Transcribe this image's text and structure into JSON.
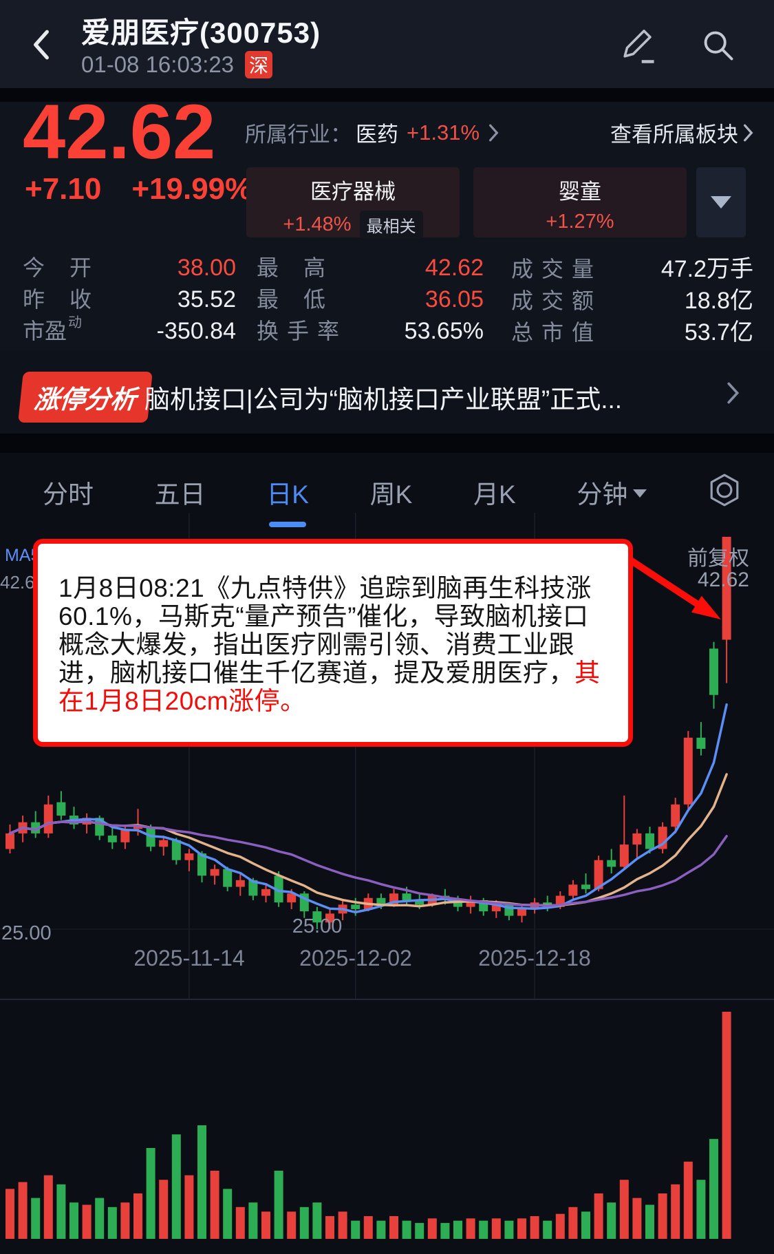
{
  "header": {
    "title": "爱朋医疗(300753)",
    "datetime": "01-08 16:03:23",
    "exchange_badge": "深"
  },
  "quote": {
    "price": "42.62",
    "change": "+7.10",
    "change_pct": "+19.99%",
    "industry_label": "所属行业：",
    "industry_name": "医药",
    "industry_pct": "+1.31%",
    "view_sector": "查看所属板块",
    "sectors": [
      {
        "name": "医疗器械",
        "pct": "+1.48%",
        "tag": "最相关"
      },
      {
        "name": "婴童",
        "pct": "+1.27%"
      }
    ]
  },
  "stats": {
    "pe_sup": "动",
    "rows": [
      [
        {
          "label": "今开",
          "value": "38.00"
        },
        {
          "label": "最高",
          "value": "42.62"
        },
        {
          "label": "成交量",
          "value": "47.2万手"
        }
      ],
      [
        {
          "label": "昨收",
          "value": "35.52"
        },
        {
          "label": "最低",
          "value": "36.05"
        },
        {
          "label": "成交额",
          "value": "18.8亿"
        }
      ],
      [
        {
          "label": "市盈",
          "value": "-350.84"
        },
        {
          "label": "换手率",
          "value": "53.65%"
        },
        {
          "label": "总市值",
          "value": "53.7亿"
        }
      ]
    ]
  },
  "banner": {
    "badge": "涨停分析",
    "text": "脑机接口|公司为“脑机接口产业联盟”正式..."
  },
  "tabs": {
    "items": [
      "分时",
      "五日",
      "日K",
      "周K",
      "月K",
      "分钟"
    ],
    "active": "日K"
  },
  "annotation": {
    "text_black": "1月8日08:21《九点特供》追踪到脑再生科技涨60.1%，马斯克“量产预告”催化，导致脑机接口概念大爆发，指出医疗刚需引领、消费工业跟进，脑机接口催生千亿赛道，提及爱朋医疗，",
    "text_red": "其在1月8日20cm涨停。"
  },
  "chart_data": {
    "type": "candlestick",
    "ma_label": "MA5:",
    "adjust_label": "前复权",
    "y_max_label": "42.62",
    "y_min_label": "25.00",
    "trough_label": "25.00",
    "x_labels": [
      "2025-11-14",
      "2025-12-02",
      "2025-12-18"
    ],
    "ylim": [
      25.0,
      42.62
    ],
    "gridline_indices": [
      14,
      27,
      41
    ],
    "ma_periods": [
      5,
      10,
      20
    ],
    "colors": {
      "up": "#e8413c",
      "down": "#2eae54",
      "ma5": "#5b8ff5",
      "ma10": "#e3b48c",
      "ma20": "#8a5fc0",
      "accent_red": "#fb4136",
      "tab_blue": "#4c8cf5"
    },
    "candles": [
      [
        28.6,
        29.7,
        28.4,
        29.3,
        22
      ],
      [
        29.3,
        30.1,
        28.9,
        29.8,
        25
      ],
      [
        29.8,
        30.3,
        29.1,
        29.3,
        18
      ],
      [
        29.3,
        31.0,
        29.1,
        30.6,
        28
      ],
      [
        30.7,
        31.2,
        29.9,
        30.1,
        24
      ],
      [
        30.1,
        30.5,
        29.5,
        29.7,
        16
      ],
      [
        29.7,
        30.2,
        29.3,
        30.0,
        15
      ],
      [
        30.0,
        30.1,
        29.0,
        29.2,
        18
      ],
      [
        29.2,
        29.6,
        28.6,
        28.9,
        14
      ],
      [
        28.9,
        29.7,
        28.6,
        29.5,
        16
      ],
      [
        29.5,
        30.4,
        29.2,
        29.6,
        20
      ],
      [
        29.6,
        29.7,
        28.5,
        28.7,
        40
      ],
      [
        28.7,
        29.2,
        28.3,
        29.0,
        26
      ],
      [
        29.0,
        29.1,
        27.9,
        28.1,
        46
      ],
      [
        28.1,
        28.6,
        27.6,
        28.4,
        28
      ],
      [
        28.4,
        28.5,
        27.1,
        27.4,
        50
      ],
      [
        27.4,
        27.9,
        27.0,
        27.7,
        30
      ],
      [
        27.7,
        27.8,
        26.7,
        26.9,
        22
      ],
      [
        26.9,
        27.5,
        26.5,
        27.2,
        14
      ],
      [
        27.2,
        27.3,
        26.3,
        26.5,
        16
      ],
      [
        26.5,
        27.0,
        26.2,
        26.8,
        12
      ],
      [
        27.4,
        27.6,
        26.0,
        26.2,
        30
      ],
      [
        26.2,
        26.8,
        25.9,
        26.6,
        12
      ],
      [
        26.6,
        26.7,
        25.5,
        25.8,
        14
      ],
      [
        25.8,
        26.0,
        25.0,
        25.3,
        16
      ],
      [
        25.3,
        25.9,
        25.0,
        25.7,
        10
      ],
      [
        25.7,
        26.3,
        25.4,
        26.1,
        12
      ],
      [
        26.1,
        26.4,
        25.6,
        25.9,
        8
      ],
      [
        25.9,
        26.6,
        25.8,
        26.4,
        10
      ],
      [
        26.4,
        26.6,
        25.9,
        26.1,
        8
      ],
      [
        26.1,
        26.8,
        26.0,
        26.6,
        10
      ],
      [
        26.6,
        26.9,
        26.1,
        26.3,
        8
      ],
      [
        26.3,
        26.6,
        25.9,
        26.1,
        7
      ],
      [
        26.1,
        26.6,
        26.0,
        26.5,
        9
      ],
      [
        26.5,
        26.8,
        26.1,
        26.3,
        7
      ],
      [
        26.3,
        26.5,
        25.8,
        26.0,
        8
      ],
      [
        26.0,
        26.5,
        25.7,
        26.3,
        9
      ],
      [
        26.3,
        26.4,
        25.6,
        25.8,
        8
      ],
      [
        25.8,
        26.3,
        25.5,
        26.1,
        9
      ],
      [
        26.1,
        26.2,
        25.4,
        25.6,
        8
      ],
      [
        25.6,
        26.1,
        25.3,
        25.9,
        9
      ],
      [
        25.9,
        26.4,
        25.7,
        26.2,
        10
      ],
      [
        26.2,
        26.5,
        25.8,
        26.0,
        8
      ],
      [
        26.0,
        26.7,
        25.9,
        26.5,
        11
      ],
      [
        26.5,
        27.2,
        26.3,
        27.0,
        14
      ],
      [
        27.0,
        27.5,
        26.6,
        26.8,
        12
      ],
      [
        26.8,
        28.3,
        26.7,
        28.1,
        20
      ],
      [
        28.1,
        28.6,
        27.5,
        27.8,
        16
      ],
      [
        27.8,
        31.0,
        27.7,
        28.8,
        26
      ],
      [
        28.8,
        29.5,
        28.2,
        29.3,
        18
      ],
      [
        29.3,
        29.6,
        28.4,
        28.6,
        15
      ],
      [
        28.6,
        29.8,
        28.4,
        29.6,
        20
      ],
      [
        29.6,
        30.9,
        29.3,
        30.6,
        24
      ],
      [
        30.6,
        33.9,
        30.4,
        33.6,
        34
      ],
      [
        33.6,
        34.3,
        32.8,
        33.1,
        26
      ],
      [
        37.6,
        37.9,
        34.9,
        35.52,
        44
      ],
      [
        38.0,
        42.62,
        36.05,
        42.62,
        100
      ]
    ]
  }
}
